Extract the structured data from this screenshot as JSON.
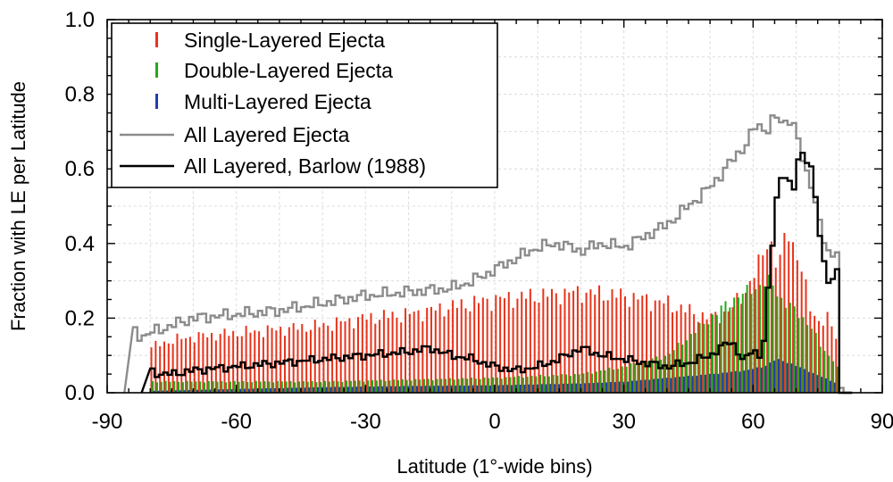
{
  "chart_data": {
    "type": "bar",
    "xlabel": "Latitude  (1°-wide bins)",
    "ylabel": "Fraction with LE per Latitude",
    "xlim": [
      -90,
      90
    ],
    "ylim": [
      0,
      1.0
    ],
    "xticks": [
      "-90",
      "-60",
      "-30",
      "0",
      "30",
      "60",
      "90"
    ],
    "yticks": [
      "0.0",
      "0.2",
      "0.4",
      "0.6",
      "0.8",
      "1.0"
    ],
    "grid": true,
    "legend_position": "top-left",
    "legend": [
      {
        "label": "Single-Layered Ejecta",
        "color": "#e8341c",
        "kind": "bar"
      },
      {
        "label": "Double-Layered Ejecta",
        "color": "#27a71c",
        "kind": "bar"
      },
      {
        "label": "Multi-Layered Ejecta",
        "color": "#1f3fa8",
        "kind": "bar"
      },
      {
        "label": "All Layered Ejecta",
        "color": "#8c8c8c",
        "kind": "line"
      },
      {
        "label": "All Layered, Barlow (1988)",
        "color": "#000000",
        "kind": "line"
      }
    ],
    "series_keypoints": {
      "single": [
        [
          -80,
          0.12
        ],
        [
          -75,
          0.14
        ],
        [
          -70,
          0.15
        ],
        [
          -60,
          0.16
        ],
        [
          -50,
          0.17
        ],
        [
          -40,
          0.18
        ],
        [
          -30,
          0.2
        ],
        [
          -20,
          0.21
        ],
        [
          -10,
          0.23
        ],
        [
          0,
          0.25
        ],
        [
          10,
          0.26
        ],
        [
          20,
          0.27
        ],
        [
          30,
          0.26
        ],
        [
          40,
          0.24
        ],
        [
          50,
          0.2
        ],
        [
          55,
          0.22
        ],
        [
          60,
          0.3
        ],
        [
          64,
          0.42
        ],
        [
          66,
          0.32
        ],
        [
          68,
          0.45
        ],
        [
          70,
          0.38
        ],
        [
          72,
          0.3
        ],
        [
          74,
          0.22
        ],
        [
          76,
          0.18
        ],
        [
          78,
          0.2
        ],
        [
          80,
          0.14
        ]
      ],
      "double": [
        [
          -80,
          0.03
        ],
        [
          -60,
          0.03
        ],
        [
          -40,
          0.03
        ],
        [
          -20,
          0.035
        ],
        [
          0,
          0.04
        ],
        [
          20,
          0.05
        ],
        [
          30,
          0.07
        ],
        [
          40,
          0.1
        ],
        [
          45,
          0.15
        ],
        [
          50,
          0.2
        ],
        [
          55,
          0.25
        ],
        [
          60,
          0.28
        ],
        [
          64,
          0.3
        ],
        [
          67,
          0.24
        ],
        [
          70,
          0.22
        ],
        [
          73,
          0.18
        ],
        [
          76,
          0.12
        ],
        [
          79,
          0.08
        ],
        [
          80,
          0.05
        ]
      ],
      "multi": [
        [
          -80,
          0.005
        ],
        [
          -60,
          0.01
        ],
        [
          -40,
          0.015
        ],
        [
          -20,
          0.018
        ],
        [
          0,
          0.02
        ],
        [
          20,
          0.025
        ],
        [
          30,
          0.03
        ],
        [
          40,
          0.04
        ],
        [
          50,
          0.05
        ],
        [
          58,
          0.06
        ],
        [
          62,
          0.07
        ],
        [
          65,
          0.09
        ],
        [
          68,
          0.08
        ],
        [
          72,
          0.06
        ],
        [
          76,
          0.04
        ],
        [
          80,
          0.02
        ]
      ],
      "all_layered": [
        [
          -84,
          0.17
        ],
        [
          -82,
          0.15
        ],
        [
          -80,
          0.16
        ],
        [
          -75,
          0.18
        ],
        [
          -70,
          0.2
        ],
        [
          -60,
          0.21
        ],
        [
          -50,
          0.22
        ],
        [
          -40,
          0.24
        ],
        [
          -30,
          0.26
        ],
        [
          -20,
          0.27
        ],
        [
          -10,
          0.28
        ],
        [
          -5,
          0.3
        ],
        [
          0,
          0.33
        ],
        [
          5,
          0.36
        ],
        [
          10,
          0.39
        ],
        [
          15,
          0.4
        ],
        [
          20,
          0.38
        ],
        [
          25,
          0.4
        ],
        [
          30,
          0.39
        ],
        [
          35,
          0.42
        ],
        [
          40,
          0.45
        ],
        [
          45,
          0.5
        ],
        [
          50,
          0.55
        ],
        [
          55,
          0.62
        ],
        [
          58,
          0.66
        ],
        [
          61,
          0.72
        ],
        [
          63,
          0.7
        ],
        [
          65,
          0.74
        ],
        [
          67,
          0.72
        ],
        [
          69,
          0.74
        ],
        [
          71,
          0.65
        ],
        [
          72,
          0.6
        ],
        [
          74,
          0.55
        ],
        [
          75,
          0.48
        ],
        [
          76,
          0.42
        ],
        [
          78,
          0.36
        ],
        [
          80,
          0.4
        ]
      ],
      "barlow_1988": [
        [
          -80,
          0.06
        ],
        [
          -78,
          0.05
        ],
        [
          -75,
          0.05
        ],
        [
          -70,
          0.06
        ],
        [
          -60,
          0.07
        ],
        [
          -50,
          0.08
        ],
        [
          -40,
          0.09
        ],
        [
          -30,
          0.1
        ],
        [
          -20,
          0.11
        ],
        [
          -15,
          0.12
        ],
        [
          -10,
          0.1
        ],
        [
          -5,
          0.09
        ],
        [
          0,
          0.07
        ],
        [
          5,
          0.06
        ],
        [
          10,
          0.07
        ],
        [
          15,
          0.09
        ],
        [
          20,
          0.12
        ],
        [
          25,
          0.1
        ],
        [
          30,
          0.09
        ],
        [
          35,
          0.08
        ],
        [
          40,
          0.07
        ],
        [
          45,
          0.08
        ],
        [
          50,
          0.1
        ],
        [
          55,
          0.14
        ],
        [
          58,
          0.08
        ],
        [
          60,
          0.12
        ],
        [
          62,
          0.09
        ],
        [
          63,
          0.2
        ],
        [
          64,
          0.34
        ],
        [
          65,
          0.45
        ],
        [
          66,
          0.6
        ],
        [
          67,
          0.55
        ],
        [
          68,
          0.62
        ],
        [
          69,
          0.5
        ],
        [
          70,
          0.58
        ],
        [
          71,
          0.68
        ],
        [
          72,
          0.6
        ],
        [
          73,
          0.65
        ],
        [
          74,
          0.56
        ],
        [
          75,
          0.47
        ],
        [
          76,
          0.38
        ],
        [
          77,
          0.32
        ],
        [
          78,
          0.28
        ],
        [
          79,
          0.34
        ],
        [
          80,
          0.3
        ]
      ]
    }
  }
}
